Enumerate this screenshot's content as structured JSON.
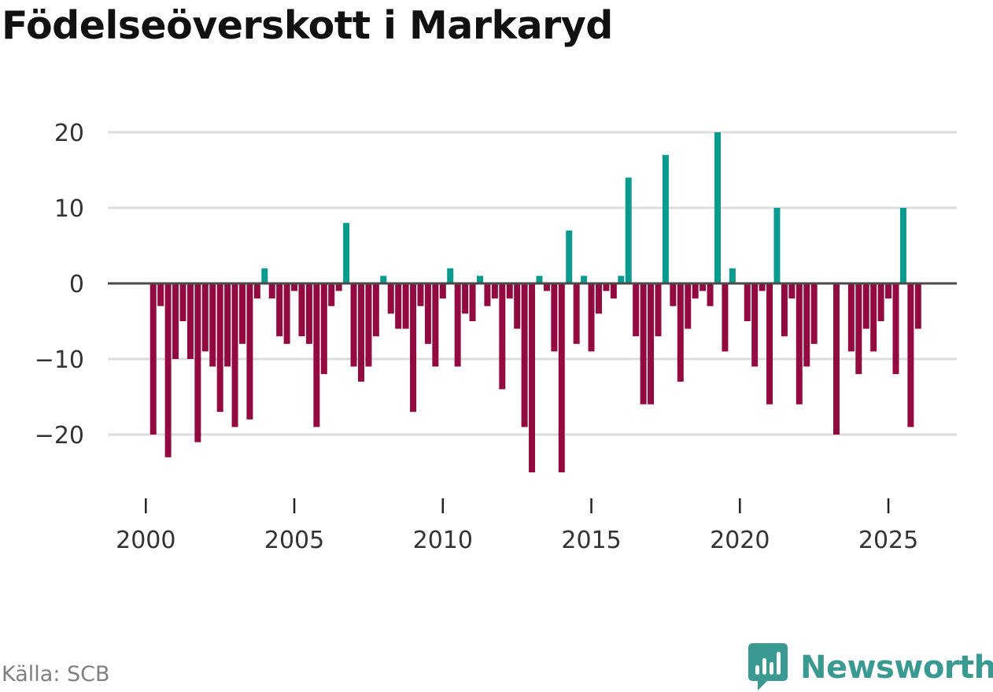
{
  "chart_data": {
    "type": "bar",
    "title": "Födelseöverskott i Markaryd",
    "xlabel": "",
    "ylabel": "",
    "x_ticks": [
      2000,
      2005,
      2010,
      2015,
      2020,
      2025
    ],
    "x_tick_labels": [
      "2000",
      "2005",
      "2010",
      "2015",
      "2020",
      "2025"
    ],
    "y_ticks": [
      20,
      10,
      0,
      -10,
      -20
    ],
    "y_tick_labels": [
      "20",
      "10",
      "0",
      "−10",
      "−20"
    ],
    "xlim": [
      1999.6,
      2027.2
    ],
    "ylim": [
      -28,
      20
    ],
    "first_period": 2000.25,
    "period_step": 0.25,
    "values": [
      -20,
      -3,
      -23,
      -10,
      -5,
      -10,
      -21,
      -9,
      -11,
      -17,
      -11,
      -19,
      -8,
      -18,
      -2,
      2,
      -2,
      -7,
      -8,
      -1,
      -7,
      -8,
      -19,
      -12,
      -3,
      -1,
      8,
      -11,
      -13,
      -11,
      -7,
      1,
      -4,
      -6,
      -6,
      -17,
      -3,
      -8,
      -11,
      -2,
      2,
      -11,
      -4,
      -5,
      1,
      -3,
      -2,
      -14,
      -2,
      -6,
      -19,
      -25,
      1,
      -1,
      -9,
      -25,
      7,
      -8,
      1,
      -9,
      -4,
      -1,
      -2,
      1,
      14,
      -7,
      -16,
      -16,
      -7,
      17,
      -3,
      -13,
      -6,
      -2,
      -1,
      -3,
      20,
      -9,
      2,
      0,
      -5,
      -11,
      -1,
      -16,
      10,
      -7,
      -2,
      -16,
      -11,
      -8,
      0,
      0,
      -20,
      0,
      -9,
      -12,
      -6,
      -9,
      -5,
      -2,
      -12,
      10,
      -19,
      -6
    ],
    "colors": {
      "positive": "#0a9a8e",
      "negative": "#930a40",
      "zero_line": "#4a4a4a",
      "grid": "#dddddd",
      "x_tick": "#222222"
    }
  },
  "source": "Källa: SCB",
  "brand": {
    "name": "Newsworthy",
    "color": "#3a9a92"
  }
}
